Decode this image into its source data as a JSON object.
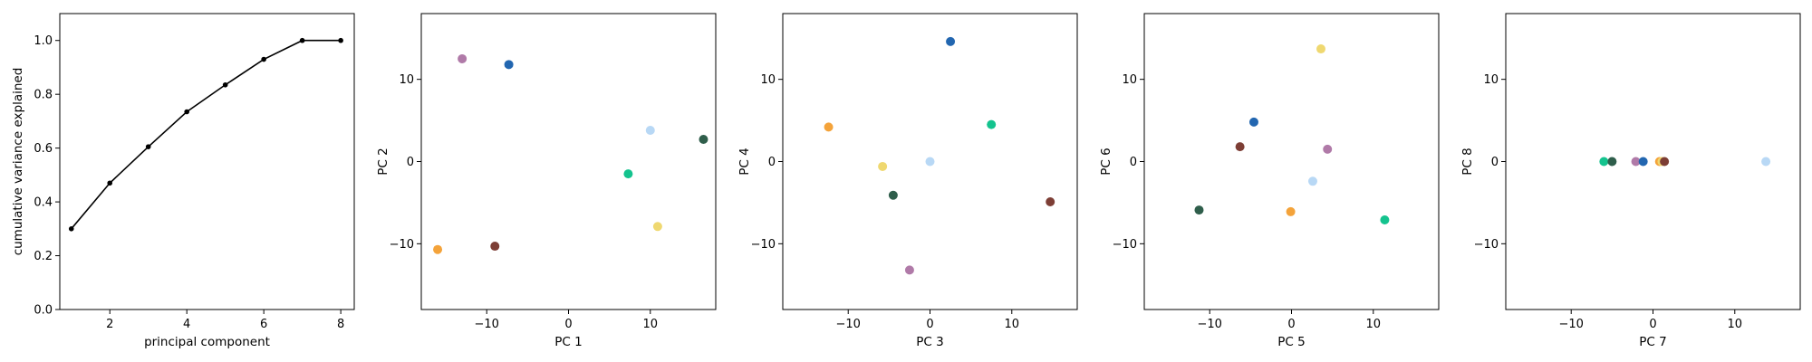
{
  "chart_data": [
    {
      "type": "line",
      "xlabel": "principal component",
      "ylabel": "cumulative variance explained",
      "xlim": [
        0.7,
        8.35
      ],
      "ylim": [
        0,
        1.1
      ],
      "xticks": [
        2,
        4,
        6,
        8
      ],
      "xtick_labels": [
        "2",
        "4",
        "6",
        "8"
      ],
      "yticks": [
        0,
        0.2,
        0.4,
        0.6,
        0.8,
        1.0
      ],
      "ytick_labels": [
        "0.0",
        "0.2",
        "0.4",
        "0.6",
        "0.8",
        "1.0"
      ],
      "grid": false,
      "series": [
        {
          "x": [
            1,
            2,
            3,
            4,
            5,
            6,
            7,
            8
          ],
          "y": [
            0.3,
            0.47,
            0.605,
            0.735,
            0.835,
            0.93,
            1.0,
            1.0
          ],
          "color": "#000000"
        }
      ]
    },
    {
      "type": "scatter",
      "xlabel": "PC 1",
      "ylabel": "PC 2",
      "xlim": [
        -18,
        18
      ],
      "ylim": [
        -18,
        18
      ],
      "xticks": [
        -10,
        0,
        10
      ],
      "xtick_labels": [
        "−10",
        "0",
        "10"
      ],
      "yticks": [
        -10,
        0,
        10
      ],
      "ytick_labels": [
        "−10",
        "0",
        "10"
      ],
      "grid": false,
      "points": [
        {
          "x": -7.3,
          "y": 11.8,
          "color": "#2266b0"
        },
        {
          "x": -13.0,
          "y": 12.5,
          "color": "#b07aa8"
        },
        {
          "x": 10.0,
          "y": 3.8,
          "color": "#b8d8f5"
        },
        {
          "x": 16.5,
          "y": 2.7,
          "color": "#2f5e4b"
        },
        {
          "x": 7.3,
          "y": -1.5,
          "color": "#14c38e"
        },
        {
          "x": 10.9,
          "y": -7.9,
          "color": "#efd870"
        },
        {
          "x": -9.0,
          "y": -10.3,
          "color": "#7d3e35"
        },
        {
          "x": -16.0,
          "y": -10.7,
          "color": "#f4a33a"
        }
      ]
    },
    {
      "type": "scatter",
      "xlabel": "PC 3",
      "ylabel": "PC 4",
      "xlim": [
        -18,
        18
      ],
      "ylim": [
        -18,
        18
      ],
      "xticks": [
        -10,
        0,
        10
      ],
      "xtick_labels": [
        "−10",
        "0",
        "10"
      ],
      "yticks": [
        -10,
        0,
        10
      ],
      "ytick_labels": [
        "−10",
        "0",
        "10"
      ],
      "grid": false,
      "points": [
        {
          "x": 2.5,
          "y": 14.6,
          "color": "#2266b0"
        },
        {
          "x": -12.4,
          "y": 4.2,
          "color": "#f4a33a"
        },
        {
          "x": 7.5,
          "y": 4.5,
          "color": "#14c38e"
        },
        {
          "x": 0.0,
          "y": 0.0,
          "color": "#b8d8f5"
        },
        {
          "x": -5.8,
          "y": -0.6,
          "color": "#efd870"
        },
        {
          "x": -4.5,
          "y": -4.1,
          "color": "#2f5e4b"
        },
        {
          "x": 14.7,
          "y": -4.9,
          "color": "#7d3e35"
        },
        {
          "x": -2.5,
          "y": -13.2,
          "color": "#b07aa8"
        }
      ]
    },
    {
      "type": "scatter",
      "xlabel": "PC 5",
      "ylabel": "PC 6",
      "xlim": [
        -18,
        18
      ],
      "ylim": [
        -18,
        18
      ],
      "xticks": [
        -10,
        0,
        10
      ],
      "xtick_labels": [
        "−10",
        "0",
        "10"
      ],
      "yticks": [
        -10,
        0,
        10
      ],
      "ytick_labels": [
        "−10",
        "0",
        "10"
      ],
      "grid": false,
      "points": [
        {
          "x": 3.6,
          "y": 13.7,
          "color": "#efd870"
        },
        {
          "x": -4.6,
          "y": 4.8,
          "color": "#2266b0"
        },
        {
          "x": -6.3,
          "y": 1.8,
          "color": "#7d3e35"
        },
        {
          "x": 4.4,
          "y": 1.5,
          "color": "#b07aa8"
        },
        {
          "x": 2.6,
          "y": -2.4,
          "color": "#b8d8f5"
        },
        {
          "x": -0.1,
          "y": -6.1,
          "color": "#f4a33a"
        },
        {
          "x": 11.4,
          "y": -7.1,
          "color": "#14c38e"
        },
        {
          "x": -11.3,
          "y": -5.9,
          "color": "#2f5e4b"
        }
      ]
    },
    {
      "type": "scatter",
      "xlabel": "PC 7",
      "ylabel": "PC 8",
      "xlim": [
        -18,
        18
      ],
      "ylim": [
        -18,
        18
      ],
      "xticks": [
        -10,
        0,
        10
      ],
      "xtick_labels": [
        "−10",
        "0",
        "10"
      ],
      "yticks": [
        -10,
        0,
        10
      ],
      "ytick_labels": [
        "−10",
        "0",
        "10"
      ],
      "grid": false,
      "points": [
        {
          "x": -6.0,
          "y": 0.0,
          "color": "#14c38e"
        },
        {
          "x": -5.0,
          "y": 0.0,
          "color": "#2f5e4b"
        },
        {
          "x": -2.1,
          "y": 0.0,
          "color": "#b07aa8"
        },
        {
          "x": -1.2,
          "y": 0.0,
          "color": "#2266b0"
        },
        {
          "x": 0.8,
          "y": 0.0,
          "color": "#f4a33a"
        },
        {
          "x": 1.1,
          "y": 0.0,
          "color": "#efd870"
        },
        {
          "x": 1.4,
          "y": 0.0,
          "color": "#7d3e35"
        },
        {
          "x": 13.8,
          "y": 0.0,
          "color": "#b8d8f5"
        }
      ]
    }
  ]
}
